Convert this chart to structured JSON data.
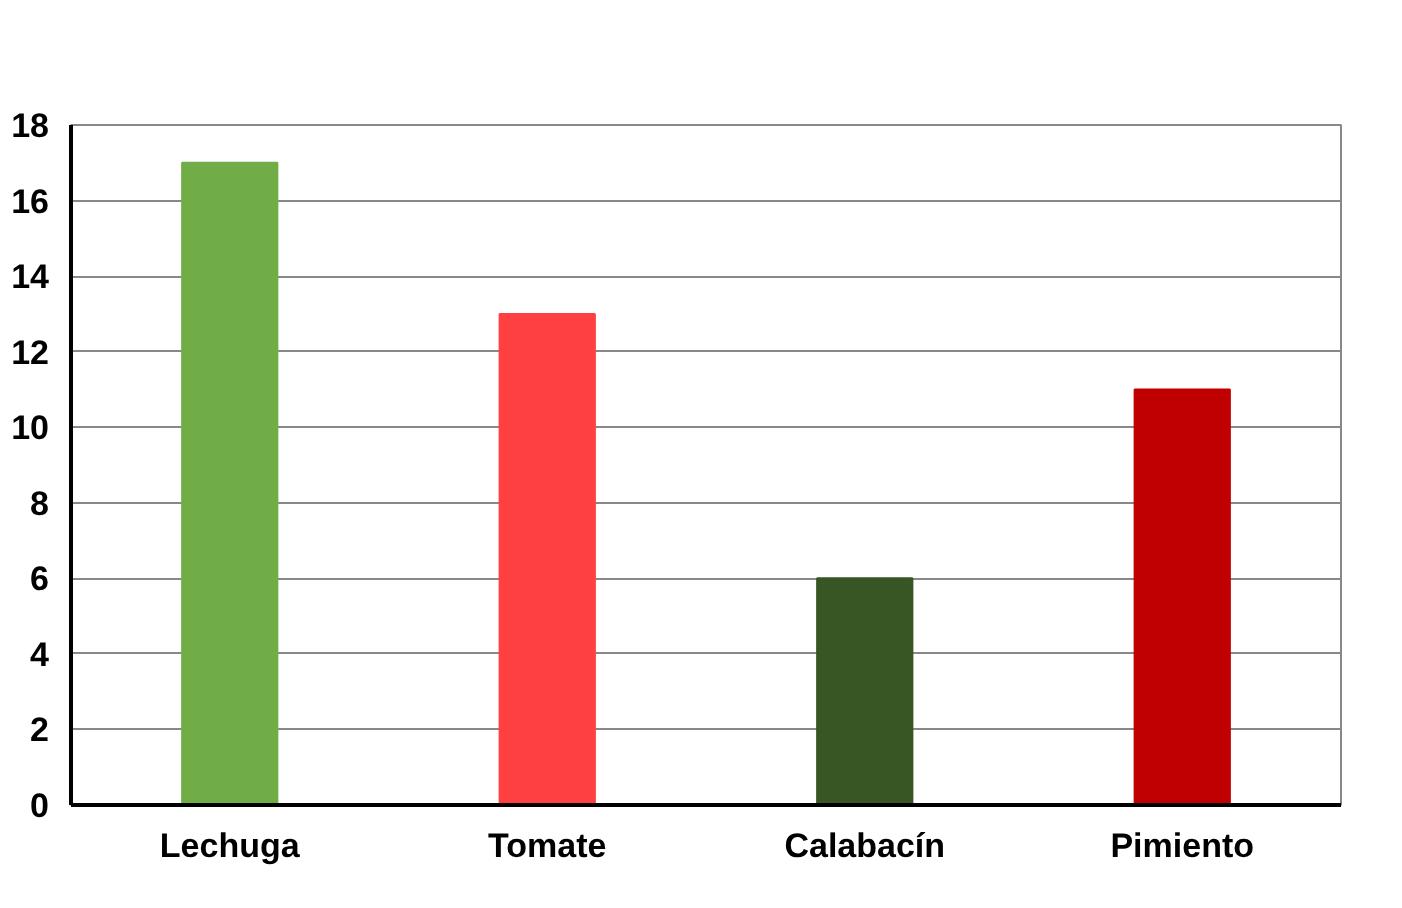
{
  "chart_data": {
    "type": "bar",
    "categories": [
      "Lechuga",
      "Tomate",
      "Calabacín",
      "Pimiento"
    ],
    "values": [
      17,
      13,
      6,
      11
    ],
    "colors": [
      "#70ad47",
      "#ff4040",
      "#375623",
      "#c00000"
    ],
    "ylim": [
      0,
      18
    ],
    "yticks": [
      0,
      2,
      4,
      6,
      8,
      10,
      12,
      14,
      16,
      18
    ],
    "grid": "y"
  }
}
